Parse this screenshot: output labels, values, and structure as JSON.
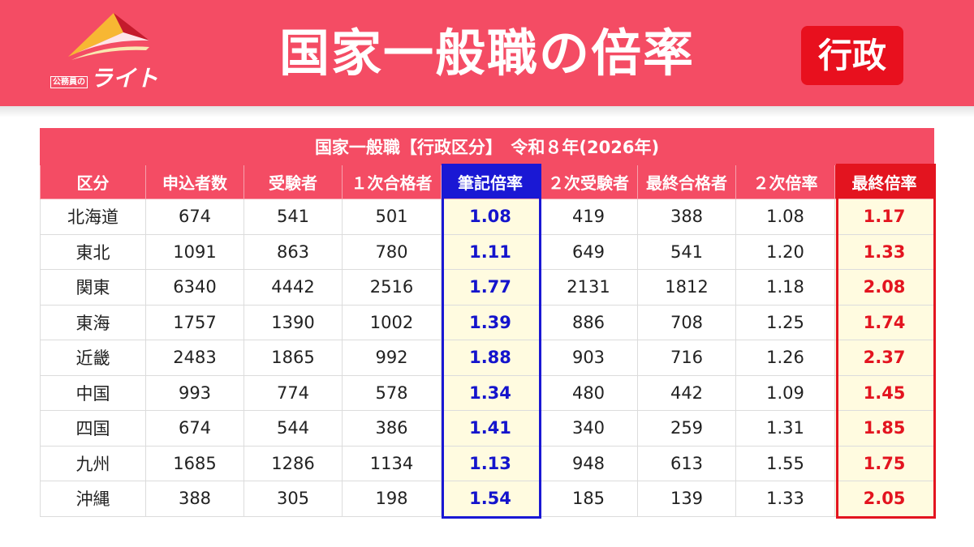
{
  "header": {
    "logo_small": "公務員の",
    "logo_big": "ライト",
    "title": "国家一般職の倍率",
    "badge": "行政"
  },
  "colors": {
    "header_bg": "#f44c64",
    "badge_bg": "#e8101e",
    "highlight_blue": "#1a18d4",
    "highlight_red": "#e3141f",
    "highlight_cell_bg": "#fffbe0"
  },
  "table": {
    "caption": "国家一般職【行政区分】　令和８年(2026年)",
    "columns": [
      "区分",
      "申込者数",
      "受験者",
      "１次合格者",
      "筆記倍率",
      "２次受験者",
      "最終合格者",
      "２次倍率",
      "最終倍率"
    ],
    "rows": [
      [
        "北海道",
        "674",
        "541",
        "501",
        "1.08",
        "419",
        "388",
        "1.08",
        "1.17"
      ],
      [
        "東北",
        "1091",
        "863",
        "780",
        "1.11",
        "649",
        "541",
        "1.20",
        "1.33"
      ],
      [
        "関東",
        "6340",
        "4442",
        "2516",
        "1.77",
        "2131",
        "1812",
        "1.18",
        "2.08"
      ],
      [
        "東海",
        "1757",
        "1390",
        "1002",
        "1.39",
        "886",
        "708",
        "1.25",
        "1.74"
      ],
      [
        "近畿",
        "2483",
        "1865",
        "992",
        "1.88",
        "903",
        "716",
        "1.26",
        "2.37"
      ],
      [
        "中国",
        "993",
        "774",
        "578",
        "1.34",
        "480",
        "442",
        "1.09",
        "1.45"
      ],
      [
        "四国",
        "674",
        "544",
        "386",
        "1.41",
        "340",
        "259",
        "1.31",
        "1.85"
      ],
      [
        "九州",
        "1685",
        "1286",
        "1134",
        "1.13",
        "948",
        "613",
        "1.55",
        "1.75"
      ],
      [
        "沖縄",
        "388",
        "305",
        "198",
        "1.54",
        "185",
        "139",
        "1.33",
        "2.05"
      ]
    ]
  }
}
